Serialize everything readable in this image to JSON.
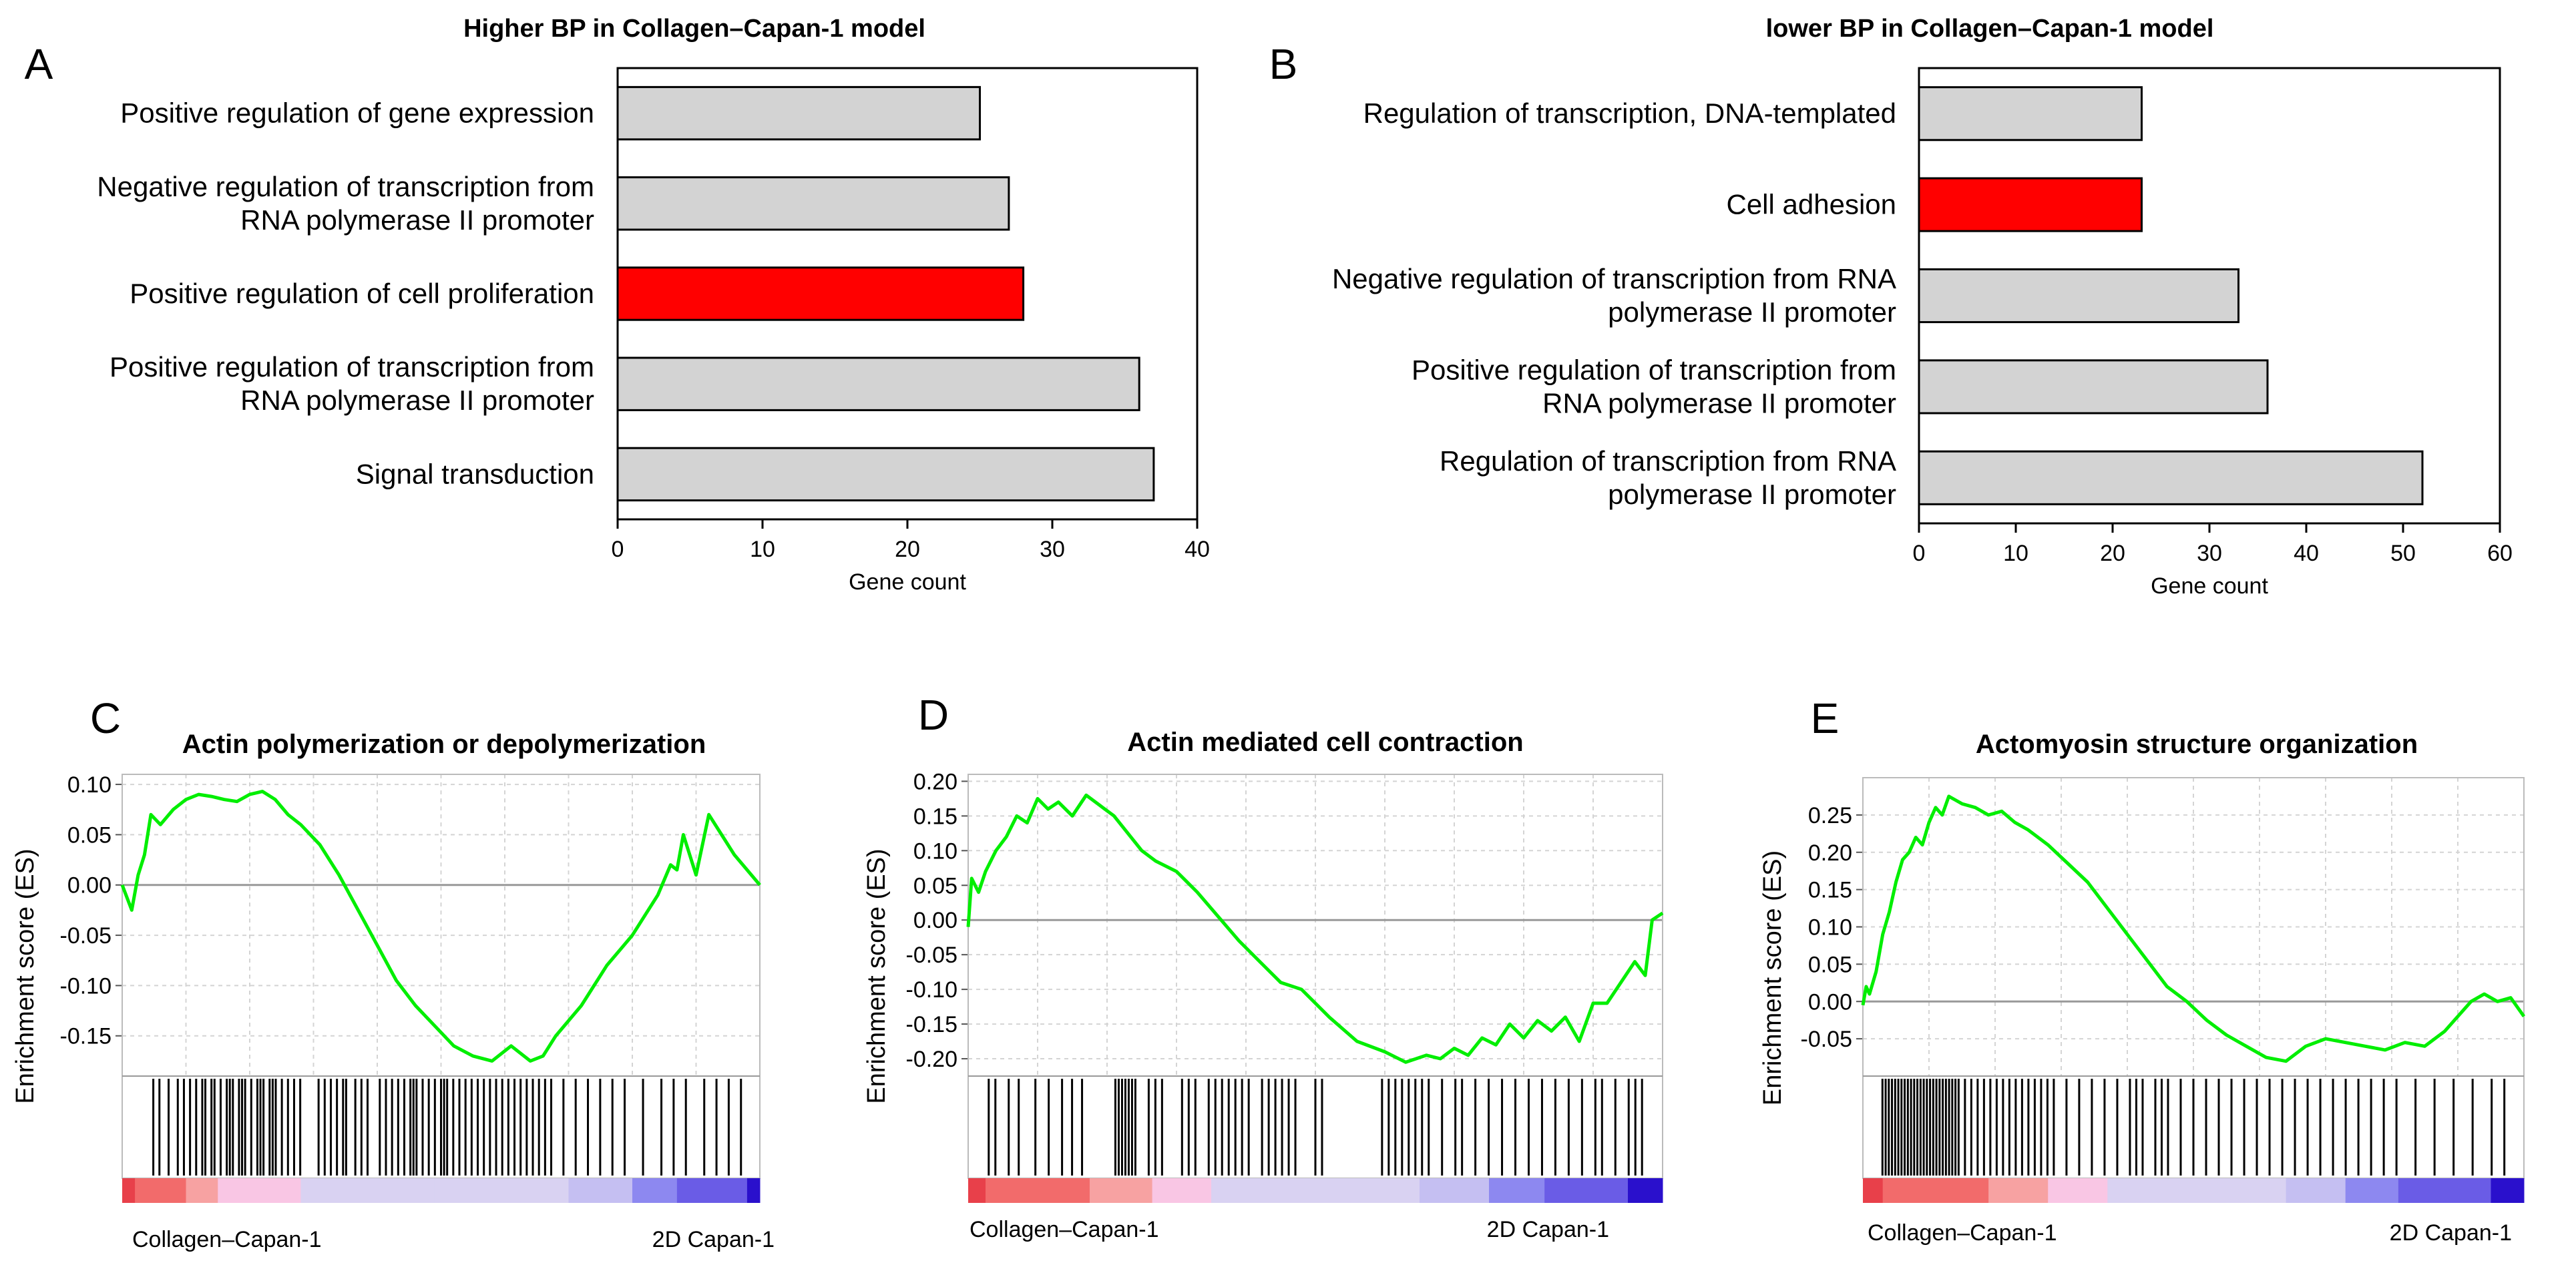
{
  "colors": {
    "bar_default": "#d3d3d3",
    "bar_highlight": "#ff0000",
    "es_line": "#00ee00",
    "zero_line": "#999999",
    "grid": "#d4d4d4",
    "gradient": [
      "#e8404a",
      "#f26b6b",
      "#f7a2a2",
      "#f9c6e4",
      "#d9d2f2",
      "#c5bff2",
      "#8d88f0",
      "#6a5ce6",
      "#2a10cc"
    ]
  },
  "chart_data": [
    {
      "panel": "A",
      "type": "bar",
      "orientation": "horizontal",
      "title": "Higher BP in Collagen–Capan-1 model",
      "xlabel": "Gene count",
      "xlim": [
        0,
        40
      ],
      "xticks": [
        0,
        10,
        20,
        30,
        40
      ],
      "categories": [
        [
          "Positive regulation of gene expression"
        ],
        [
          "Negative regulation of transcription from",
          "RNA polymerase II promoter"
        ],
        [
          "Positive regulation of cell proliferation"
        ],
        [
          "Positive regulation of transcription from",
          "RNA polymerase II promoter"
        ],
        [
          "Signal transduction"
        ]
      ],
      "values": [
        25,
        27,
        28,
        36,
        37
      ],
      "highlight": [
        false,
        false,
        true,
        false,
        false
      ]
    },
    {
      "panel": "B",
      "type": "bar",
      "orientation": "horizontal",
      "title": "lower BP in Collagen–Capan-1 model",
      "xlabel": "Gene count",
      "xlim": [
        0,
        60
      ],
      "xticks": [
        0,
        10,
        20,
        30,
        40,
        50,
        60
      ],
      "categories": [
        [
          "Regulation of transcription, DNA-templated"
        ],
        [
          "Cell adhesion"
        ],
        [
          "Negative regulation of transcription from RNA",
          "polymerase II promoter"
        ],
        [
          "Positive regulation of transcription from",
          "RNA polymerase II promoter"
        ],
        [
          "Regulation of transcription from RNA",
          "polymerase II promoter"
        ]
      ],
      "values": [
        23,
        23,
        33,
        36,
        52
      ],
      "highlight": [
        false,
        true,
        false,
        false,
        false
      ]
    },
    {
      "panel": "C",
      "type": "line",
      "title": "Actin polymerization or depolymerization",
      "ylabel": "Enrichment score (ES)",
      "ylim": [
        -0.19,
        0.11
      ],
      "yticks": [
        -0.15,
        -0.1,
        -0.05,
        0.0,
        0.05,
        0.1
      ],
      "ytick_labels": [
        "-0.15",
        "-0.10",
        "-0.05",
        "0.00",
        "0.05",
        "0.10"
      ],
      "x": [
        0,
        0.015,
        0.025,
        0.035,
        0.045,
        0.06,
        0.08,
        0.1,
        0.12,
        0.14,
        0.16,
        0.18,
        0.2,
        0.22,
        0.24,
        0.26,
        0.28,
        0.31,
        0.34,
        0.37,
        0.4,
        0.43,
        0.46,
        0.49,
        0.52,
        0.55,
        0.58,
        0.61,
        0.64,
        0.66,
        0.68,
        0.7,
        0.72,
        0.74,
        0.76,
        0.78,
        0.8,
        0.82,
        0.84,
        0.86,
        0.87,
        0.88,
        0.9,
        0.92,
        0.94,
        0.96,
        0.98,
        1.0
      ],
      "y": [
        0.0,
        -0.025,
        0.01,
        0.03,
        0.07,
        0.06,
        0.075,
        0.085,
        0.09,
        0.088,
        0.085,
        0.083,
        0.09,
        0.093,
        0.085,
        0.07,
        0.06,
        0.04,
        0.01,
        -0.025,
        -0.06,
        -0.095,
        -0.12,
        -0.14,
        -0.16,
        -0.17,
        -0.175,
        -0.16,
        -0.175,
        -0.17,
        -0.15,
        -0.135,
        -0.12,
        -0.1,
        -0.08,
        -0.065,
        -0.05,
        -0.03,
        -0.01,
        0.02,
        0.015,
        0.05,
        0.01,
        0.07,
        0.05,
        0.03,
        0.015,
        0.0
      ],
      "hits": [
        0.03,
        0.04,
        0.055,
        0.07,
        0.08,
        0.09,
        0.1,
        0.11,
        0.115,
        0.125,
        0.13,
        0.14,
        0.15,
        0.155,
        0.16,
        0.17,
        0.175,
        0.18,
        0.19,
        0.2,
        0.205,
        0.21,
        0.22,
        0.225,
        0.23,
        0.24,
        0.25,
        0.26,
        0.27,
        0.3,
        0.31,
        0.32,
        0.33,
        0.34,
        0.345,
        0.36,
        0.37,
        0.38,
        0.4,
        0.41,
        0.42,
        0.43,
        0.44,
        0.45,
        0.455,
        0.46,
        0.47,
        0.48,
        0.49,
        0.5,
        0.505,
        0.51,
        0.52,
        0.53,
        0.54,
        0.55,
        0.56,
        0.57,
        0.58,
        0.59,
        0.6,
        0.61,
        0.62,
        0.63,
        0.64,
        0.65,
        0.66,
        0.67,
        0.68,
        0.7,
        0.72,
        0.74,
        0.76,
        0.78,
        0.8,
        0.83,
        0.86,
        0.88,
        0.9,
        0.93,
        0.95,
        0.97,
        0.99
      ],
      "gradient_stops": [
        0.0,
        0.02,
        0.1,
        0.15,
        0.28,
        0.49,
        0.7,
        0.8,
        0.87,
        0.98,
        1.0
      ],
      "gradient_left_label": "Collagen–Capan-1",
      "gradient_right_label": "2D Capan-1"
    },
    {
      "panel": "D",
      "type": "line",
      "title": "Actin mediated cell contraction",
      "ylabel": "Enrichment score (ES)",
      "ylim": [
        -0.225,
        0.21
      ],
      "yticks": [
        -0.2,
        -0.15,
        -0.1,
        -0.05,
        0.0,
        0.05,
        0.1,
        0.15,
        0.2
      ],
      "ytick_labels": [
        "-0.20",
        "-0.15",
        "-0.10",
        "-0.05",
        "0.00",
        "0.05",
        "0.10",
        "0.15",
        "0.20"
      ],
      "x": [
        0,
        0.005,
        0.015,
        0.025,
        0.04,
        0.055,
        0.07,
        0.085,
        0.1,
        0.115,
        0.13,
        0.15,
        0.17,
        0.19,
        0.21,
        0.23,
        0.25,
        0.27,
        0.3,
        0.33,
        0.36,
        0.39,
        0.42,
        0.45,
        0.48,
        0.52,
        0.56,
        0.6,
        0.63,
        0.66,
        0.68,
        0.7,
        0.72,
        0.74,
        0.76,
        0.78,
        0.8,
        0.82,
        0.84,
        0.86,
        0.88,
        0.9,
        0.92,
        0.94,
        0.96,
        0.975,
        0.985,
        1.0
      ],
      "y": [
        -0.01,
        0.06,
        0.04,
        0.07,
        0.1,
        0.12,
        0.15,
        0.14,
        0.175,
        0.16,
        0.17,
        0.15,
        0.18,
        0.165,
        0.15,
        0.125,
        0.1,
        0.085,
        0.07,
        0.04,
        0.005,
        -0.03,
        -0.06,
        -0.09,
        -0.1,
        -0.14,
        -0.175,
        -0.19,
        -0.205,
        -0.195,
        -0.2,
        -0.185,
        -0.195,
        -0.17,
        -0.18,
        -0.15,
        -0.17,
        -0.145,
        -0.16,
        -0.14,
        -0.175,
        -0.12,
        -0.12,
        -0.09,
        -0.06,
        -0.08,
        0.0,
        0.01
      ],
      "hits": [
        0.01,
        0.02,
        0.04,
        0.055,
        0.08,
        0.1,
        0.12,
        0.135,
        0.15,
        0.2,
        0.205,
        0.21,
        0.215,
        0.22,
        0.225,
        0.23,
        0.25,
        0.26,
        0.27,
        0.3,
        0.31,
        0.32,
        0.34,
        0.35,
        0.36,
        0.37,
        0.38,
        0.39,
        0.4,
        0.42,
        0.43,
        0.44,
        0.45,
        0.46,
        0.47,
        0.5,
        0.51,
        0.6,
        0.61,
        0.62,
        0.63,
        0.64,
        0.65,
        0.66,
        0.67,
        0.69,
        0.71,
        0.72,
        0.74,
        0.76,
        0.78,
        0.8,
        0.82,
        0.84,
        0.86,
        0.88,
        0.9,
        0.92,
        0.93,
        0.95,
        0.97,
        0.98,
        0.99
      ],
      "gradient_stops": [
        0.0,
        0.025,
        0.175,
        0.265,
        0.35,
        0.51,
        0.65,
        0.75,
        0.83,
        0.95,
        1.0
      ],
      "gradient_left_label": "Collagen–Capan-1",
      "gradient_right_label": "2D Capan-1"
    },
    {
      "panel": "E",
      "type": "line",
      "title": "Actomyosin structure organization",
      "ylabel": "Enrichment score (ES)",
      "ylim": [
        -0.1,
        0.3
      ],
      "yticks": [
        -0.05,
        0.0,
        0.05,
        0.1,
        0.15,
        0.2,
        0.25
      ],
      "ytick_labels": [
        "-0.05",
        "0.00",
        "0.05",
        "0.10",
        "0.15",
        "0.20",
        "0.25"
      ],
      "x": [
        0,
        0.005,
        0.01,
        0.02,
        0.03,
        0.04,
        0.05,
        0.06,
        0.07,
        0.08,
        0.09,
        0.1,
        0.11,
        0.12,
        0.13,
        0.14,
        0.15,
        0.17,
        0.19,
        0.21,
        0.23,
        0.25,
        0.28,
        0.31,
        0.34,
        0.37,
        0.4,
        0.43,
        0.46,
        0.49,
        0.52,
        0.55,
        0.58,
        0.61,
        0.64,
        0.67,
        0.7,
        0.73,
        0.76,
        0.79,
        0.82,
        0.85,
        0.88,
        0.9,
        0.92,
        0.94,
        0.96,
        0.98,
        1.0
      ],
      "y": [
        -0.005,
        0.02,
        0.01,
        0.04,
        0.09,
        0.12,
        0.16,
        0.19,
        0.2,
        0.22,
        0.21,
        0.24,
        0.26,
        0.25,
        0.275,
        0.27,
        0.265,
        0.26,
        0.25,
        0.255,
        0.24,
        0.23,
        0.21,
        0.185,
        0.16,
        0.125,
        0.09,
        0.055,
        0.02,
        0.0,
        -0.025,
        -0.045,
        -0.06,
        -0.075,
        -0.08,
        -0.06,
        -0.05,
        -0.055,
        -0.06,
        -0.065,
        -0.055,
        -0.06,
        -0.04,
        -0.02,
        0.0,
        0.01,
        0.0,
        0.005,
        -0.02
      ],
      "hits": [
        0.01,
        0.015,
        0.02,
        0.025,
        0.03,
        0.035,
        0.04,
        0.045,
        0.05,
        0.055,
        0.06,
        0.065,
        0.07,
        0.075,
        0.08,
        0.085,
        0.09,
        0.095,
        0.1,
        0.105,
        0.11,
        0.115,
        0.12,
        0.125,
        0.13,
        0.14,
        0.15,
        0.16,
        0.17,
        0.18,
        0.19,
        0.2,
        0.21,
        0.22,
        0.23,
        0.24,
        0.25,
        0.26,
        0.27,
        0.28,
        0.3,
        0.32,
        0.34,
        0.36,
        0.38,
        0.4,
        0.41,
        0.42,
        0.44,
        0.45,
        0.46,
        0.48,
        0.5,
        0.52,
        0.54,
        0.56,
        0.58,
        0.6,
        0.62,
        0.64,
        0.66,
        0.68,
        0.7,
        0.72,
        0.74,
        0.76,
        0.78,
        0.8,
        0.82,
        0.85,
        0.88,
        0.91,
        0.94,
        0.97,
        0.99
      ],
      "gradient_stops": [
        0.0,
        0.03,
        0.19,
        0.28,
        0.37,
        0.51,
        0.64,
        0.73,
        0.81,
        0.95,
        1.0
      ],
      "gradient_left_label": "Collagen–Capan-1",
      "gradient_right_label": "2D Capan-1"
    }
  ]
}
